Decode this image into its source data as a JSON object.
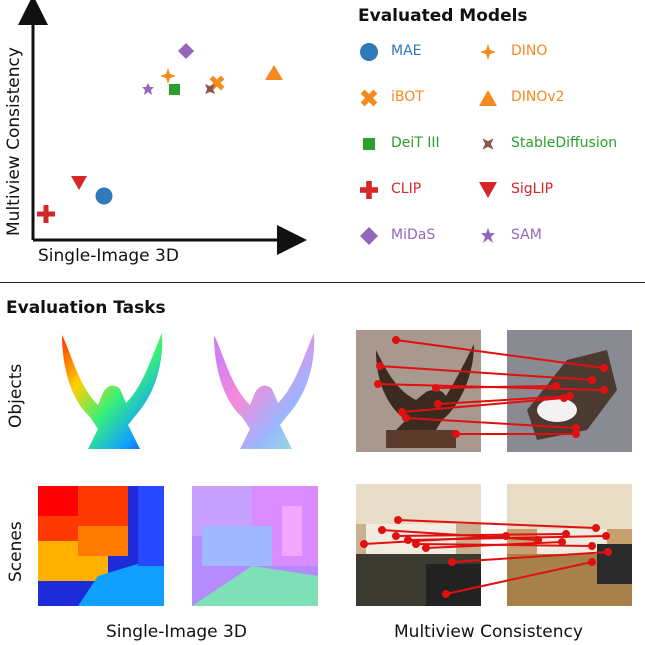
{
  "scatter": {
    "x_label": "Single-Image 3D",
    "y_label": "Multiview Consistency"
  },
  "legend": {
    "title": "Evaluated Models",
    "items": [
      {
        "label": "MAE",
        "color": "#2f7ab8",
        "marker": "circle"
      },
      {
        "label": "DINO",
        "color": "#f58a1f",
        "marker": "plus-star"
      },
      {
        "label": "iBOT",
        "color": "#f58a1f",
        "marker": "x"
      },
      {
        "label": "DINOv2",
        "color": "#f58a1f",
        "marker": "triangle-up"
      },
      {
        "label": "DeiT III",
        "color": "#2ca02c",
        "marker": "square"
      },
      {
        "label": "StableDiffusion",
        "color": "#8c564b",
        "marker": "x-star"
      },
      {
        "label": "CLIP",
        "color": "#d62728",
        "marker": "plus"
      },
      {
        "label": "SigLIP",
        "color": "#d62728",
        "marker": "triangle-down"
      },
      {
        "label": "MiDaS",
        "color": "#9467bd",
        "marker": "diamond"
      },
      {
        "label": "SAM",
        "color": "#9467bd",
        "marker": "star"
      }
    ]
  },
  "tasks": {
    "title": "Evaluation Tasks",
    "rows": [
      "Objects",
      "Scenes"
    ],
    "columns": [
      "Single-Image 3D",
      "Multiview Consistency"
    ]
  }
}
